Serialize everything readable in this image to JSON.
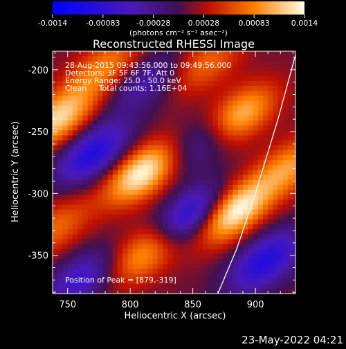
{
  "chart_data": {
    "type": "heatmap",
    "title": "Reconstructed RHESSI Image",
    "xlabel": "Heliocentric X (arcsec)",
    "ylabel": "Heliocentric Y (arcsec)",
    "xlim": [
      738,
      932
    ],
    "ylim": [
      -381,
      -185
    ],
    "x_ticks": [
      750,
      800,
      850,
      900
    ],
    "y_ticks": [
      -200,
      -250,
      -300,
      -350
    ],
    "colorbar": {
      "ticks": [
        "-0.0014",
        "-0.00083",
        "-0.00028",
        "0.00028",
        "0.00083",
        "0.0014"
      ],
      "range": [
        -0.0014,
        0.0014
      ],
      "unit_label": "(photons cm⁻² s⁻¹ asec⁻²)"
    },
    "annotations": [
      "28-Aug-2015 09:43:56.000 to 09:49:56.000",
      "Detectors: 3F 5F 6F 7F, Att 0",
      "Energy Range: 25.0 - 50.0 keV",
      "Clean     Total counts: 1.16E+04"
    ],
    "peak_label": "Position of Peak = [879,-319]",
    "peak": {
      "x": 879,
      "y": -319
    },
    "limb_curve": [
      [
        932,
        -188
      ],
      [
        918,
        -240
      ],
      [
        900,
        -300
      ],
      [
        885,
        -345
      ],
      [
        870,
        -381
      ]
    ],
    "sources": [
      {
        "x": 742,
        "y": -240,
        "value": 0.0011
      },
      {
        "x": 810,
        "y": -283,
        "value": 0.0013
      },
      {
        "x": 812,
        "y": -348,
        "value": 0.0009
      },
      {
        "x": 881,
        "y": -315,
        "value": 0.0014
      },
      {
        "x": 886,
        "y": -238,
        "value": 0.0011
      },
      {
        "x": 927,
        "y": -279,
        "value": 0.0008
      },
      {
        "x": 780,
        "y": -198,
        "value": 0.0007
      },
      {
        "x": 740,
        "y": -328,
        "value": 0.0006
      },
      {
        "x": 860,
        "y": -195,
        "value": 0.0006
      }
    ],
    "negative_sources": [
      {
        "x": 770,
        "y": -268,
        "value": -0.0011
      },
      {
        "x": 849,
        "y": -318,
        "value": -0.0012
      },
      {
        "x": 908,
        "y": -355,
        "value": -0.0011
      },
      {
        "x": 760,
        "y": -370,
        "value": -0.0008
      },
      {
        "x": 858,
        "y": -258,
        "value": -0.0007
      },
      {
        "x": 812,
        "y": -210,
        "value": -0.0006
      }
    ]
  },
  "footer_date": "23-May-2022 04:21"
}
